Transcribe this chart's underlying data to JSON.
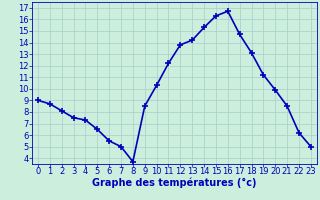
{
  "hours": [
    0,
    1,
    2,
    3,
    4,
    5,
    6,
    7,
    8,
    9,
    10,
    11,
    12,
    13,
    14,
    15,
    16,
    17,
    18,
    19,
    20,
    21,
    22,
    23
  ],
  "temperatures": [
    9.0,
    8.7,
    8.1,
    7.5,
    7.3,
    6.5,
    5.5,
    5.0,
    3.7,
    8.5,
    10.3,
    12.2,
    13.8,
    14.2,
    15.3,
    16.3,
    16.7,
    14.7,
    13.1,
    11.2,
    9.9,
    8.5,
    6.2,
    5.0
  ],
  "line_color": "#0000bb",
  "marker": "+",
  "marker_size": 4,
  "marker_linewidth": 1.2,
  "bg_color": "#cceedd",
  "grid_color": "#aacccc",
  "xlabel": "Graphe des températures (°c)",
  "xlabel_color": "#0000bb",
  "xlabel_fontsize": 7,
  "tick_color": "#0000bb",
  "tick_fontsize": 6,
  "ylim": [
    3.5,
    17.5
  ],
  "xlim": [
    -0.5,
    23.5
  ],
  "yticks": [
    4,
    5,
    6,
    7,
    8,
    9,
    10,
    11,
    12,
    13,
    14,
    15,
    16,
    17
  ],
  "xticks": [
    0,
    1,
    2,
    3,
    4,
    5,
    6,
    7,
    8,
    9,
    10,
    11,
    12,
    13,
    14,
    15,
    16,
    17,
    18,
    19,
    20,
    21,
    22,
    23
  ],
  "spine_color": "#0000bb",
  "linewidth": 1.2
}
